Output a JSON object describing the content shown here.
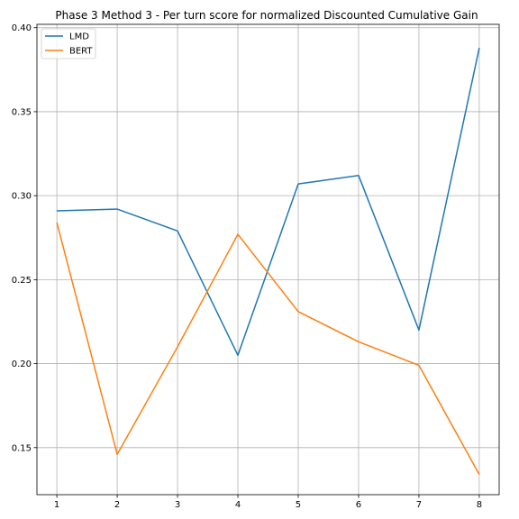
{
  "chart_data": {
    "type": "line",
    "title": "Phase 3 Method 3 - Per turn score for normalized Discounted Cumulative Gain",
    "xlabel": "",
    "ylabel": "",
    "x": [
      1,
      2,
      3,
      4,
      5,
      6,
      7,
      8
    ],
    "x_ticks": [
      "1",
      "2",
      "3",
      "4",
      "5",
      "6",
      "7",
      "8"
    ],
    "y_ticks": [
      "0.15",
      "0.20",
      "0.25",
      "0.30",
      "0.35",
      "0.40"
    ],
    "xlim": [
      0.67,
      8.33
    ],
    "ylim": [
      0.122,
      0.402
    ],
    "grid": true,
    "legend_position": "top-left",
    "series": [
      {
        "name": "LMD",
        "color": "#1f77b4",
        "values": [
          0.291,
          0.292,
          0.279,
          0.205,
          0.307,
          0.312,
          0.22,
          0.388
        ]
      },
      {
        "name": "BERT",
        "color": "#ff7f0e",
        "values": [
          0.284,
          0.146,
          0.21,
          0.277,
          0.231,
          0.213,
          0.199,
          0.134
        ]
      }
    ]
  }
}
